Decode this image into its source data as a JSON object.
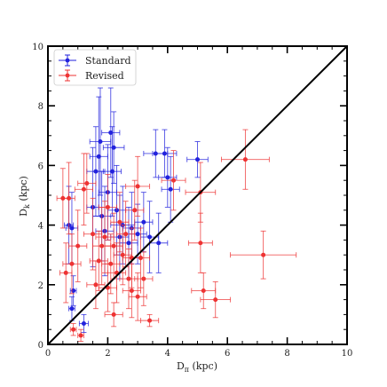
{
  "chart_data": {
    "type": "scatter",
    "title": "",
    "xlabel": "D",
    "xlabel_sub": "π",
    "xlabel_unit": " (kpc)",
    "ylabel": "D",
    "ylabel_sub": "k",
    "ylabel_unit": " (kpc)",
    "xlim": [
      0,
      10
    ],
    "ylim": [
      0,
      10
    ],
    "x_ticks": [
      0,
      2,
      4,
      6,
      8,
      10
    ],
    "y_ticks": [
      0,
      2,
      4,
      6,
      8,
      10
    ],
    "x_tick_labels": [
      "0",
      "2",
      "4",
      "6",
      "8",
      "10"
    ],
    "y_tick_labels": [
      "0",
      "2",
      "4",
      "6",
      "8",
      "10"
    ],
    "grid": false,
    "legend_position": "top-left",
    "reference_line": {
      "x": [
        0,
        10
      ],
      "y": [
        0,
        10
      ],
      "color": "#000000"
    },
    "series": [
      {
        "name": "Standard",
        "color": "#2222dd",
        "points": [
          {
            "x": 0.7,
            "y": 4.0,
            "xerr": 0.15,
            "yerr": 1.3
          },
          {
            "x": 0.8,
            "y": 3.9,
            "xerr": 0.2,
            "yerr": 1.2
          },
          {
            "x": 0.8,
            "y": 1.2,
            "xerr": 0.1,
            "yerr": 0.4
          },
          {
            "x": 0.85,
            "y": 1.8,
            "xerr": 0.1,
            "yerr": 0.5
          },
          {
            "x": 1.2,
            "y": 0.7,
            "xerr": 0.15,
            "yerr": 0.3
          },
          {
            "x": 1.5,
            "y": 4.6,
            "xerr": 0.2,
            "yerr": 2.0
          },
          {
            "x": 1.6,
            "y": 5.8,
            "xerr": 0.3,
            "yerr": 1.5
          },
          {
            "x": 1.7,
            "y": 6.3,
            "xerr": 0.3,
            "yerr": 2.0
          },
          {
            "x": 1.75,
            "y": 6.8,
            "xerr": 0.35,
            "yerr": 1.8
          },
          {
            "x": 1.8,
            "y": 4.3,
            "xerr": 0.3,
            "yerr": 1.5
          },
          {
            "x": 1.9,
            "y": 3.8,
            "xerr": 0.3,
            "yerr": 1.5
          },
          {
            "x": 2.0,
            "y": 5.1,
            "xerr": 0.3,
            "yerr": 1.6
          },
          {
            "x": 2.1,
            "y": 7.1,
            "xerr": 0.3,
            "yerr": 1.5
          },
          {
            "x": 2.15,
            "y": 5.8,
            "xerr": 0.3,
            "yerr": 1.5
          },
          {
            "x": 2.2,
            "y": 6.6,
            "xerr": 0.35,
            "yerr": 1.2
          },
          {
            "x": 2.3,
            "y": 4.5,
            "xerr": 0.3,
            "yerr": 1.5
          },
          {
            "x": 2.4,
            "y": 3.6,
            "xerr": 0.3,
            "yerr": 1.4
          },
          {
            "x": 2.5,
            "y": 4.0,
            "xerr": 0.4,
            "yerr": 1.3
          },
          {
            "x": 2.7,
            "y": 3.4,
            "xerr": 0.3,
            "yerr": 1.2
          },
          {
            "x": 2.8,
            "y": 3.9,
            "xerr": 0.3,
            "yerr": 1.2
          },
          {
            "x": 3.0,
            "y": 3.7,
            "xerr": 0.3,
            "yerr": 1.0
          },
          {
            "x": 3.2,
            "y": 4.1,
            "xerr": 0.3,
            "yerr": 1.0
          },
          {
            "x": 3.4,
            "y": 3.6,
            "xerr": 0.3,
            "yerr": 1.2
          },
          {
            "x": 3.6,
            "y": 6.4,
            "xerr": 0.4,
            "yerr": 0.8
          },
          {
            "x": 3.7,
            "y": 3.4,
            "xerr": 0.3,
            "yerr": 1.0
          },
          {
            "x": 3.9,
            "y": 6.4,
            "xerr": 0.4,
            "yerr": 0.8
          },
          {
            "x": 4.0,
            "y": 5.6,
            "xerr": 0.3,
            "yerr": 1.0
          },
          {
            "x": 4.1,
            "y": 5.2,
            "xerr": 0.3,
            "yerr": 1.1
          },
          {
            "x": 5.0,
            "y": 6.2,
            "xerr": 0.35,
            "yerr": 0.6
          }
        ]
      },
      {
        "name": "Revised",
        "color": "#ee3333",
        "points": [
          {
            "x": 0.5,
            "y": 4.9,
            "xerr": 0.2,
            "yerr": 1.0
          },
          {
            "x": 0.6,
            "y": 2.4,
            "xerr": 0.2,
            "yerr": 1.0
          },
          {
            "x": 0.7,
            "y": 4.9,
            "xerr": 0.2,
            "yerr": 1.2
          },
          {
            "x": 0.8,
            "y": 2.7,
            "xerr": 0.3,
            "yerr": 1.0
          },
          {
            "x": 0.85,
            "y": 0.5,
            "xerr": 0.1,
            "yerr": 0.2
          },
          {
            "x": 1.0,
            "y": 3.3,
            "xerr": 0.3,
            "yerr": 1.2
          },
          {
            "x": 1.1,
            "y": 0.3,
            "xerr": 0.1,
            "yerr": 0.2
          },
          {
            "x": 1.2,
            "y": 5.2,
            "xerr": 0.3,
            "yerr": 1.2
          },
          {
            "x": 1.3,
            "y": 5.4,
            "xerr": 0.3,
            "yerr": 1.0
          },
          {
            "x": 1.5,
            "y": 3.7,
            "xerr": 0.3,
            "yerr": 1.2
          },
          {
            "x": 1.6,
            "y": 2.0,
            "xerr": 0.3,
            "yerr": 0.8
          },
          {
            "x": 1.7,
            "y": 2.8,
            "xerr": 0.3,
            "yerr": 1.0
          },
          {
            "x": 1.8,
            "y": 3.3,
            "xerr": 0.3,
            "yerr": 1.3
          },
          {
            "x": 1.9,
            "y": 3.6,
            "xerr": 0.3,
            "yerr": 1.2
          },
          {
            "x": 2.0,
            "y": 1.9,
            "xerr": 0.3,
            "yerr": 0.8
          },
          {
            "x": 2.0,
            "y": 4.6,
            "xerr": 0.3,
            "yerr": 1.1
          },
          {
            "x": 2.1,
            "y": 2.7,
            "xerr": 0.3,
            "yerr": 1.0
          },
          {
            "x": 2.2,
            "y": 1.0,
            "xerr": 0.3,
            "yerr": 0.4
          },
          {
            "x": 2.2,
            "y": 3.3,
            "xerr": 0.3,
            "yerr": 1.1
          },
          {
            "x": 2.3,
            "y": 2.4,
            "xerr": 0.3,
            "yerr": 1.0
          },
          {
            "x": 2.4,
            "y": 4.1,
            "xerr": 0.3,
            "yerr": 1.0
          },
          {
            "x": 2.5,
            "y": 3.0,
            "xerr": 0.3,
            "yerr": 1.0
          },
          {
            "x": 2.6,
            "y": 3.7,
            "xerr": 0.3,
            "yerr": 1.1
          },
          {
            "x": 2.7,
            "y": 2.2,
            "xerr": 0.3,
            "yerr": 1.0
          },
          {
            "x": 2.8,
            "y": 1.8,
            "xerr": 0.3,
            "yerr": 0.9
          },
          {
            "x": 2.8,
            "y": 2.9,
            "xerr": 0.3,
            "yerr": 1.0
          },
          {
            "x": 2.9,
            "y": 4.5,
            "xerr": 0.3,
            "yerr": 1.0
          },
          {
            "x": 3.0,
            "y": 5.3,
            "xerr": 0.4,
            "yerr": 1.0
          },
          {
            "x": 3.0,
            "y": 1.6,
            "xerr": 0.3,
            "yerr": 0.8
          },
          {
            "x": 3.1,
            "y": 2.9,
            "xerr": 0.3,
            "yerr": 1.0
          },
          {
            "x": 3.2,
            "y": 2.2,
            "xerr": 0.3,
            "yerr": 0.9
          },
          {
            "x": 3.4,
            "y": 0.8,
            "xerr": 0.3,
            "yerr": 0.2
          },
          {
            "x": 4.2,
            "y": 5.5,
            "xerr": 0.4,
            "yerr": 1.0
          },
          {
            "x": 5.1,
            "y": 3.4,
            "xerr": 0.4,
            "yerr": 1.0
          },
          {
            "x": 5.1,
            "y": 5.1,
            "xerr": 0.5,
            "yerr": 1.0
          },
          {
            "x": 5.2,
            "y": 1.8,
            "xerr": 0.4,
            "yerr": 0.6
          },
          {
            "x": 5.6,
            "y": 1.5,
            "xerr": 0.5,
            "yerr": 0.6
          },
          {
            "x": 6.6,
            "y": 6.2,
            "xerr": 0.8,
            "yerr": 1.0
          },
          {
            "x": 7.2,
            "y": 3.0,
            "xerr": 1.1,
            "yerr": 0.8
          }
        ]
      }
    ]
  }
}
